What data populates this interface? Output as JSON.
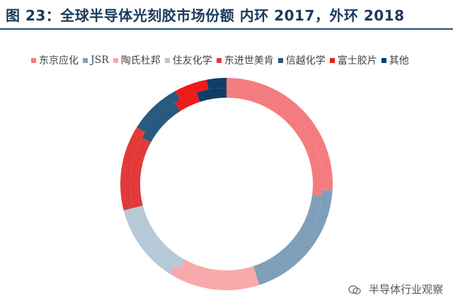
{
  "header": {
    "title": "图 23：全球半导体光刻胶市场份额      内环 2017，外环 2018"
  },
  "watermark": {
    "text": "半导体行业观察"
  },
  "chart_data": {
    "type": "donut",
    "legend_position": "top",
    "series_colors": [
      "#f47c80",
      "#7f9fb9",
      "#f8a9ab",
      "#b5c9d6",
      "#e23a3a",
      "#28597f",
      "#ee1b1b",
      "#0d3f66"
    ],
    "categories": [
      "东京应化",
      "JSR",
      "陶氏杜邦",
      "住友化学",
      "东进世美肯",
      "信越化学",
      "富士胶片",
      "其他"
    ],
    "series": [
      {
        "name": "内环 2017",
        "values": [
          27,
          18,
          13,
          13,
          12,
          8,
          4,
          5
        ]
      },
      {
        "name": "外环 2018",
        "values": [
          26,
          19,
          14,
          12,
          13,
          8,
          5,
          3
        ]
      }
    ]
  }
}
